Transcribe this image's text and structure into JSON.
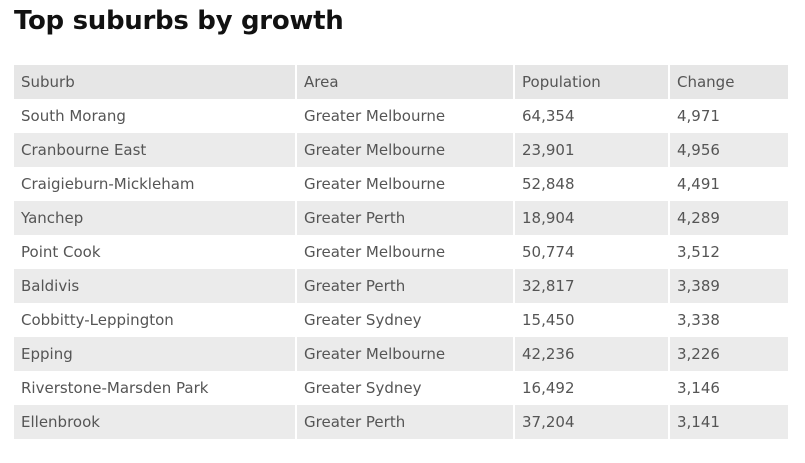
{
  "title": "Top suburbs by growth",
  "table": {
    "header": [
      "Suburb",
      "Area",
      "Population",
      "Change"
    ],
    "rows": [
      [
        "South Morang",
        "Greater Melbourne",
        "64,354",
        "4,971"
      ],
      [
        "Cranbourne East",
        "Greater Melbourne",
        "23,901",
        "4,956"
      ],
      [
        "Craigieburn-Mickleham",
        "Greater Melbourne",
        "52,848",
        "4,491"
      ],
      [
        "Yanchep",
        "Greater Perth",
        "18,904",
        "4,289"
      ],
      [
        "Point Cook",
        "Greater Melbourne",
        "50,774",
        "3,512"
      ],
      [
        "Baldivis",
        "Greater Perth",
        "32,817",
        "3,389"
      ],
      [
        "Cobbitty-Leppington",
        "Greater Sydney",
        "15,450",
        "3,338"
      ],
      [
        "Epping",
        "Greater Melbourne",
        "42,236",
        "3,226"
      ],
      [
        "Riverstone-Marsden Park",
        "Greater Sydney",
        "16,492",
        "3,146"
      ],
      [
        "Ellenbrook",
        "Greater Perth",
        "37,204",
        "3,141"
      ]
    ]
  }
}
